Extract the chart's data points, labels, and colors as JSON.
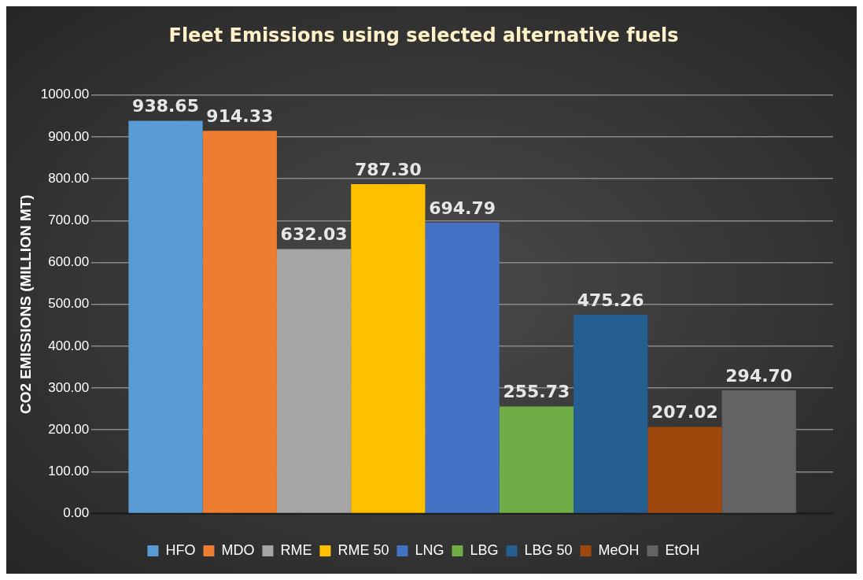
{
  "chart_data": {
    "type": "bar",
    "title": "Fleet Emissions using selected alternative fuels",
    "ylabel": "CO2 EMISSIONS (MILLION MT)",
    "categories": [
      null
    ],
    "series": [
      {
        "name": "HFO",
        "color": "#5b9bd5",
        "values": [
          938.65
        ],
        "value_labels": [
          "938.65"
        ]
      },
      {
        "name": "MDO",
        "color": "#ed7d31",
        "values": [
          914.33
        ],
        "value_labels": [
          "914.33"
        ]
      },
      {
        "name": "RME",
        "color": "#a5a5a5",
        "values": [
          632.03
        ],
        "value_labels": [
          "632.03"
        ]
      },
      {
        "name": "RME 50",
        "color": "#ffc000",
        "values": [
          787.3
        ],
        "value_labels": [
          "787.30"
        ]
      },
      {
        "name": "LNG",
        "color": "#4472c4",
        "values": [
          694.79
        ],
        "value_labels": [
          "694.79"
        ]
      },
      {
        "name": "LBG",
        "color": "#70ad47",
        "values": [
          255.73
        ],
        "value_labels": [
          "255.73"
        ]
      },
      {
        "name": "LBG 50",
        "color": "#255e91",
        "values": [
          475.26
        ],
        "value_labels": [
          "475.26"
        ]
      },
      {
        "name": "MeOH",
        "color": "#9e480e",
        "values": [
          207.02
        ],
        "value_labels": [
          "207.02"
        ]
      },
      {
        "name": "EtOH",
        "color": "#636363",
        "values": [
          294.7
        ],
        "value_labels": [
          "294.70"
        ]
      }
    ],
    "ylim": [
      0,
      1000
    ],
    "yticks": [
      {
        "value": 0,
        "label": "0.00"
      },
      {
        "value": 100,
        "label": "100.00"
      },
      {
        "value": 200,
        "label": "200.00"
      },
      {
        "value": 300,
        "label": "300.00"
      },
      {
        "value": 400,
        "label": "400.00"
      },
      {
        "value": 500,
        "label": "500.00"
      },
      {
        "value": 600,
        "label": "600.00"
      },
      {
        "value": 700,
        "label": "700.00"
      },
      {
        "value": 800,
        "label": "800.00"
      },
      {
        "value": 900,
        "label": "900.00"
      },
      {
        "value": 1000,
        "label": "1000.00"
      }
    ],
    "grid": "y",
    "legend": "bottom"
  }
}
